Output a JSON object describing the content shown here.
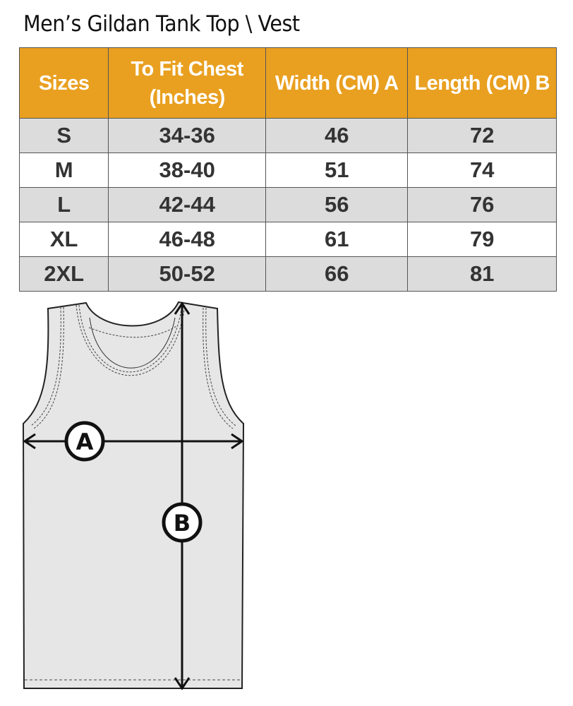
{
  "title": "Men’s Gildan Tank Top \\ Vest",
  "table": {
    "headers": [
      "Sizes",
      "To Fit Chest (Inches)",
      "Width (CM) A",
      "Length  (CM) B"
    ],
    "rows": [
      [
        "S",
        "34-36",
        "46",
        "72"
      ],
      [
        "M",
        "38-40",
        "51",
        "74"
      ],
      [
        "L",
        "42-44",
        "56",
        "76"
      ],
      [
        "XL",
        "46-48",
        "61",
        "79"
      ],
      [
        "2XL",
        "50-52",
        "66",
        "81"
      ]
    ],
    "header_color": "#E9A020"
  },
  "diagram": {
    "label_a": "A",
    "label_b": "B"
  }
}
